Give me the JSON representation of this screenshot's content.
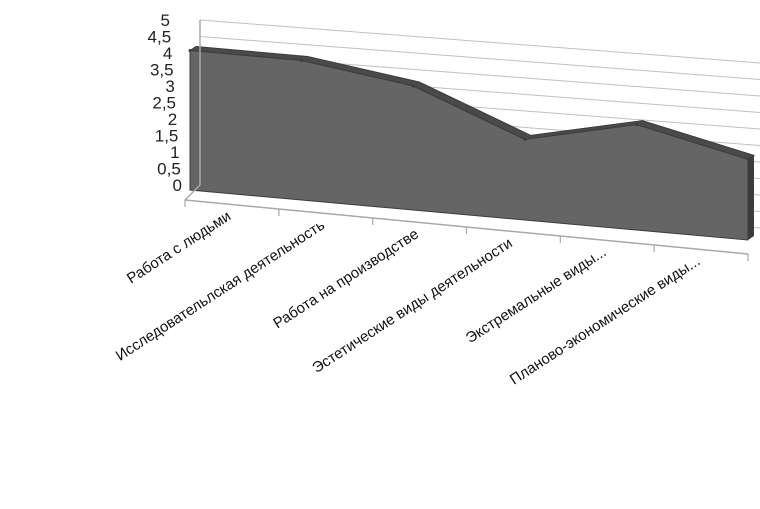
{
  "chart_data": {
    "type": "area",
    "title": "",
    "xlabel": "",
    "ylabel": "",
    "ylim": [
      0,
      5
    ],
    "y_ticks": [
      "0",
      "0,5",
      "1",
      "1,5",
      "2",
      "2,5",
      "3",
      "3,5",
      "4",
      "4,5",
      "5"
    ],
    "categories": [
      "Работа с людьми",
      "Исследовательлская деятельность",
      "Работа на производстве",
      "Эстетические виды деятельности",
      "Экстремальные виды...",
      "Планово-экономические виды..."
    ],
    "values": [
      4.5,
      4.5,
      4.0,
      2.6,
      3.4,
      2.6
    ],
    "grid": true,
    "legend": "none",
    "view": "3d-perspective",
    "colors": {
      "area_front": "#656565",
      "area_top": "#4a4a4a",
      "area_edge": "#3c3c3c",
      "grid": "#c0c0c0",
      "axis": "#a8a8a8"
    }
  }
}
